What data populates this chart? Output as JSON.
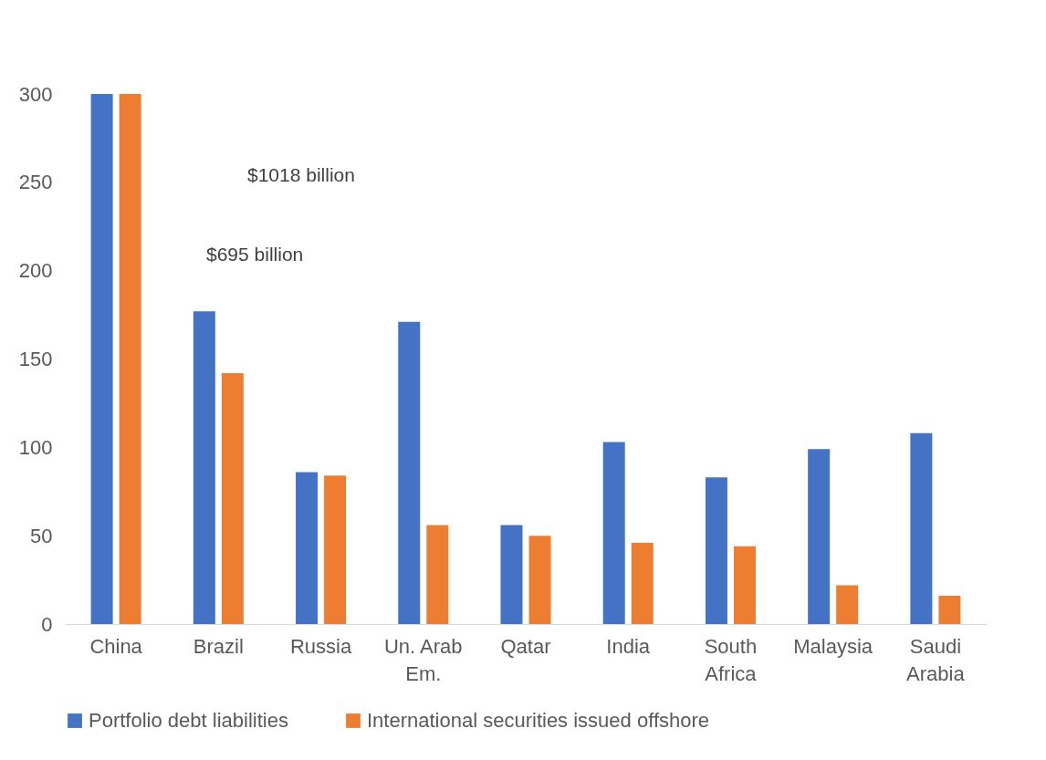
{
  "chart_data": {
    "type": "bar",
    "categories": [
      "China",
      "Brazil",
      "Russia",
      "Un. Arab Em.",
      "Qatar",
      "India",
      "South Africa",
      "Malaysia",
      "Saudi Arabia"
    ],
    "series": [
      {
        "name": "Portfolio debt liabilities",
        "color": "#4472c4",
        "values": [
          300,
          177,
          86,
          171,
          56,
          103,
          83,
          99,
          108
        ]
      },
      {
        "name": "International securities issued offshore",
        "color": "#ed7d31",
        "values": [
          300,
          142,
          84,
          56,
          50,
          46,
          44,
          22,
          16
        ]
      }
    ],
    "ylim": [
      0,
      300
    ],
    "yticks": [
      0,
      50,
      100,
      150,
      200,
      250,
      300
    ],
    "grid": false,
    "legend": "bottom",
    "annotations": [
      "$1018 billion",
      "$695 billion"
    ]
  }
}
